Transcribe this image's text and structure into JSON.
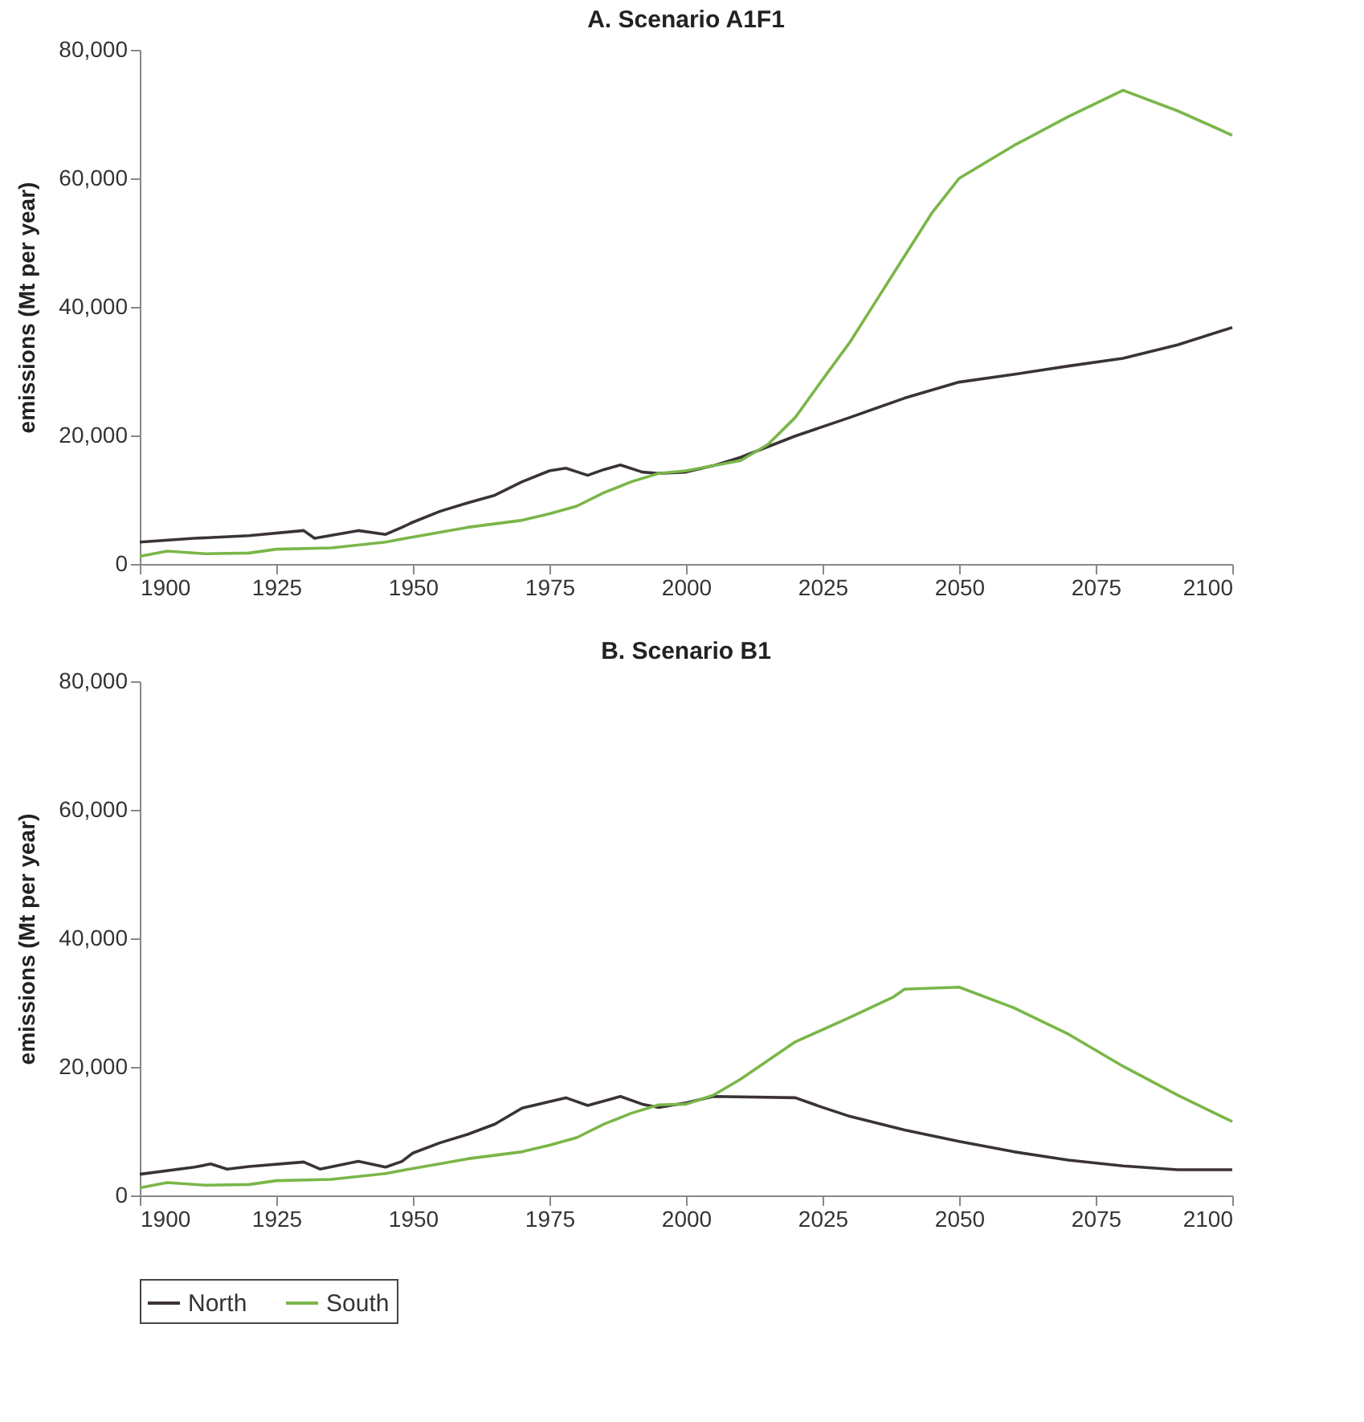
{
  "chart_data": [
    {
      "type": "line",
      "title": "A. Scenario A1F1",
      "ylabel": "emissions (Mt per year)",
      "xlim": [
        1900,
        2100
      ],
      "xticks": [
        1900,
        1925,
        1950,
        1975,
        2000,
        2025,
        2050,
        2075,
        2100
      ],
      "ylim": [
        0,
        80000
      ],
      "yticks": [
        0,
        {
          "value": 20000,
          "label": "20,000"
        },
        {
          "value": 40000,
          "label": "40,000"
        },
        {
          "value": 60000,
          "label": "60,000"
        },
        {
          "value": 80000,
          "label": "80,000"
        }
      ],
      "grid": false,
      "legend": "bottom",
      "line_style": "solid",
      "series": [
        {
          "name": "North",
          "color": "#3a3335",
          "x": [
            1900,
            1910,
            1920,
            1930,
            1932,
            1940,
            1945,
            1948,
            1950,
            1955,
            1960,
            1965,
            1970,
            1975,
            1978,
            1982,
            1985,
            1988,
            1992,
            1995,
            2000,
            2005,
            2010,
            2020,
            2030,
            2040,
            2050,
            2060,
            2070,
            2080,
            2090,
            2100
          ],
          "values": [
            3400,
            4000,
            4400,
            5200,
            4000,
            5200,
            4600,
            5700,
            6500,
            8200,
            9500,
            10700,
            12800,
            14500,
            14900,
            13800,
            14700,
            15400,
            14300,
            14100,
            14300,
            15300,
            16600,
            19900,
            22800,
            25800,
            28300,
            29500,
            30800,
            32000,
            34100,
            36800
          ]
        },
        {
          "name": "South",
          "color": "#7ab648",
          "x": [
            1900,
            1905,
            1912,
            1920,
            1925,
            1935,
            1945,
            1950,
            1960,
            1970,
            1975,
            1980,
            1985,
            1990,
            1995,
            2000,
            2010,
            2015,
            2020,
            2025,
            2030,
            2035,
            2040,
            2045,
            2050,
            2060,
            2070,
            2080,
            2090,
            2100
          ],
          "values": [
            1200,
            2000,
            1600,
            1700,
            2300,
            2500,
            3400,
            4200,
            5700,
            6800,
            7800,
            9000,
            11100,
            12800,
            14100,
            14500,
            16100,
            18600,
            22800,
            28700,
            34500,
            41200,
            47900,
            54600,
            60000,
            65100,
            69600,
            73700,
            70500,
            66700
          ]
        }
      ]
    },
    {
      "type": "line",
      "title": "B. Scenario B1",
      "ylabel": "emissions (Mt per year)",
      "xlim": [
        1900,
        2100
      ],
      "xticks": [
        1900,
        1925,
        1950,
        1975,
        2000,
        2025,
        2050,
        2075,
        2100
      ],
      "ylim": [
        0,
        80000
      ],
      "yticks": [
        0,
        {
          "value": 20000,
          "label": "20,000"
        },
        {
          "value": 40000,
          "label": "40,000"
        },
        {
          "value": 60000,
          "label": "60,000"
        },
        {
          "value": 80000,
          "label": "80,000"
        }
      ],
      "grid": false,
      "legend": "bottom",
      "line_style": "solid",
      "series": [
        {
          "name": "North",
          "color": "#3a3335",
          "x": [
            1900,
            1910,
            1913,
            1916,
            1920,
            1930,
            1933,
            1940,
            1945,
            1948,
            1950,
            1955,
            1960,
            1965,
            1970,
            1975,
            1978,
            1982,
            1988,
            1992,
            1995,
            2000,
            2005,
            2020,
            2025,
            2030,
            2040,
            2050,
            2060,
            2070,
            2080,
            2090,
            2100
          ],
          "values": [
            3300,
            4400,
            4900,
            4100,
            4500,
            5200,
            4100,
            5300,
            4400,
            5300,
            6600,
            8200,
            9500,
            11100,
            13600,
            14600,
            15200,
            14000,
            15400,
            14200,
            13700,
            14400,
            15400,
            15200,
            13700,
            12300,
            10200,
            8400,
            6800,
            5500,
            4600,
            4000,
            4000
          ]
        },
        {
          "name": "South",
          "color": "#7ab648",
          "x": [
            1900,
            1905,
            1912,
            1920,
            1925,
            1935,
            1945,
            1950,
            1960,
            1970,
            1975,
            1980,
            1985,
            1990,
            1995,
            2000,
            2005,
            2010,
            2020,
            2030,
            2038,
            2040,
            2050,
            2060,
            2070,
            2080,
            2090,
            2100
          ],
          "values": [
            1200,
            2000,
            1600,
            1700,
            2300,
            2500,
            3400,
            4200,
            5700,
            6800,
            7800,
            9000,
            11100,
            12800,
            14100,
            14200,
            15600,
            18100,
            23900,
            27700,
            30900,
            32100,
            32400,
            29200,
            25100,
            20100,
            15600,
            11500
          ]
        }
      ]
    }
  ]
}
